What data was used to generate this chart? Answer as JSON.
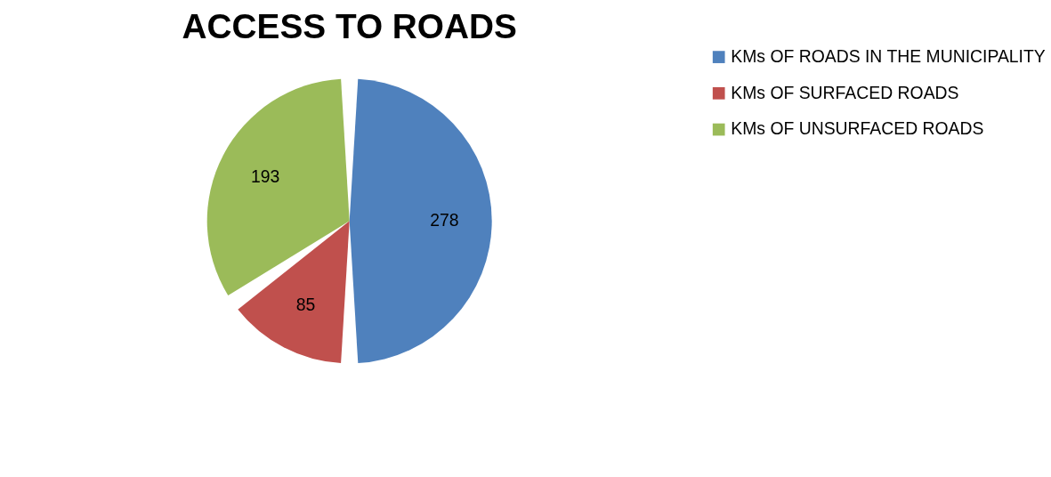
{
  "chart_data": {
    "type": "pie",
    "title": "ACCESS TO ROADS",
    "categories": [
      "KMs OF ROADS IN THE MUNICIPALITY",
      "KMs OF SURFACED ROADS",
      "KMs OF UNSURFACED ROADS"
    ],
    "values": [
      278,
      85,
      193
    ],
    "colors": [
      "#4f81bd",
      "#c0504d",
      "#9bbb59"
    ],
    "data_labels": true,
    "legend": "right"
  }
}
